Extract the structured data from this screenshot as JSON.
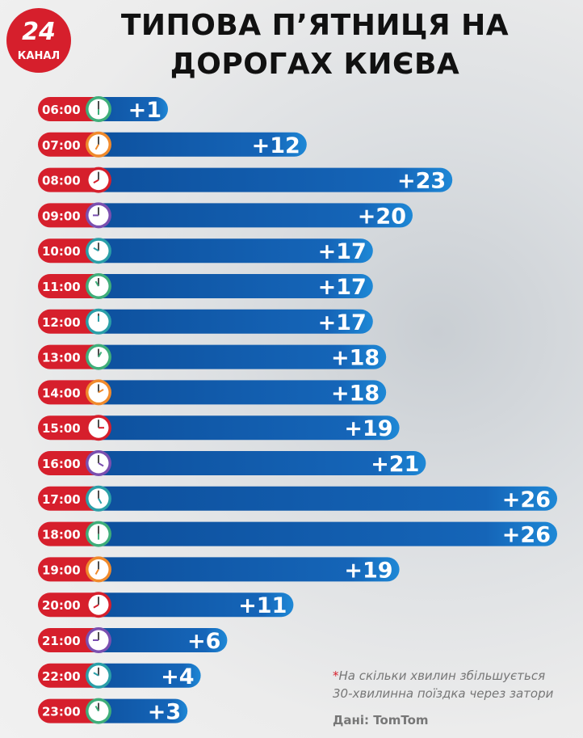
{
  "logo": {
    "number": "24",
    "word": "КАНАЛ"
  },
  "chart_data": {
    "type": "bar",
    "orientation": "horizontal",
    "title": "ТИПОВА П’ЯТНИЦЯ НА ДОРОГАХ КИЄВА",
    "categories": [
      "06:00",
      "07:00",
      "08:00",
      "09:00",
      "10:00",
      "11:00",
      "12:00",
      "13:00",
      "14:00",
      "15:00",
      "16:00",
      "17:00",
      "18:00",
      "19:00",
      "20:00",
      "21:00",
      "22:00",
      "23:00"
    ],
    "values": [
      1,
      12,
      23,
      20,
      17,
      17,
      17,
      18,
      18,
      19,
      21,
      26,
      26,
      19,
      11,
      6,
      4,
      3
    ],
    "labels": [
      "+1",
      "+12",
      "+23",
      "+20",
      "+17",
      "+17",
      "+17",
      "+18",
      "+18",
      "+19",
      "+21",
      "+26",
      "+26",
      "+19",
      "+11",
      "+6",
      "+4",
      "+3"
    ],
    "clock_colors": [
      "#3fae7a",
      "#f08a2c",
      "#d61f2c",
      "#7a4fb0",
      "#2a9fa8",
      "#3fae7a",
      "#2a9fa8",
      "#3fae7a",
      "#f08a2c",
      "#d61f2c",
      "#7a4fb0",
      "#2a9fa8",
      "#3fae7a",
      "#f08a2c",
      "#d61f2c",
      "#7a4fb0",
      "#2a9fa8",
      "#3fae7a"
    ],
    "unit": "хвилин",
    "colors": {
      "label_pill": "#d61f2c",
      "bar": "#1565b8",
      "bar_light": "#1e88d6"
    }
  },
  "footnote": {
    "asterisk": "*",
    "line1": "На скільки хвилин збільшується",
    "line2": "30-хвилинна поїздка через затори"
  },
  "source": "Дані: TomTom"
}
